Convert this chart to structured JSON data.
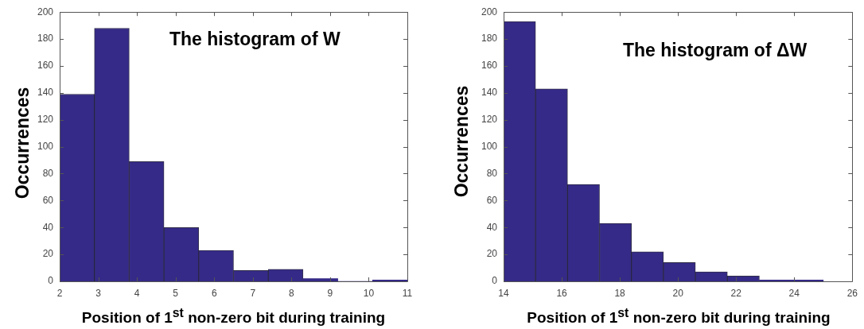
{
  "chart_data": [
    {
      "type": "histogram",
      "title": "The histogram of W",
      "xlabel": "Position of 1$^{st}$ non-zero bit during training",
      "ylabel": "Occurrences",
      "bins": [
        2,
        2.9,
        3.8,
        4.7,
        5.6,
        6.5,
        7.4,
        8.3,
        9.2,
        10.1,
        11
      ],
      "values": [
        139,
        188,
        89,
        40,
        23,
        8,
        9,
        2,
        0,
        1
      ],
      "color": "#352a87",
      "xlim": [
        2,
        11
      ],
      "xticks": [
        2,
        3,
        4,
        5,
        6,
        7,
        8,
        9,
        10,
        11
      ],
      "ylim": [
        0,
        200
      ],
      "yticks": [
        0,
        20,
        40,
        60,
        80,
        100,
        120,
        140,
        160,
        180,
        200
      ]
    },
    {
      "type": "histogram",
      "title": "The histogram of ΔW",
      "xlabel": "Position of 1$^{st}$ non-zero bit during training",
      "ylabel": "Occurrences",
      "bins": [
        14,
        15.1,
        16.2,
        17.3,
        18.4,
        19.5,
        20.6,
        21.7,
        22.8,
        23.9,
        25
      ],
      "values": [
        193,
        143,
        72,
        43,
        22,
        14,
        7,
        4,
        1,
        1
      ],
      "color": "#352a87",
      "xlim": [
        14,
        26
      ],
      "xticks": [
        14,
        16,
        18,
        20,
        22,
        24,
        26
      ],
      "ylim": [
        0,
        200
      ],
      "yticks": [
        0,
        20,
        40,
        60,
        80,
        100,
        120,
        140,
        160,
        180,
        200
      ]
    }
  ]
}
